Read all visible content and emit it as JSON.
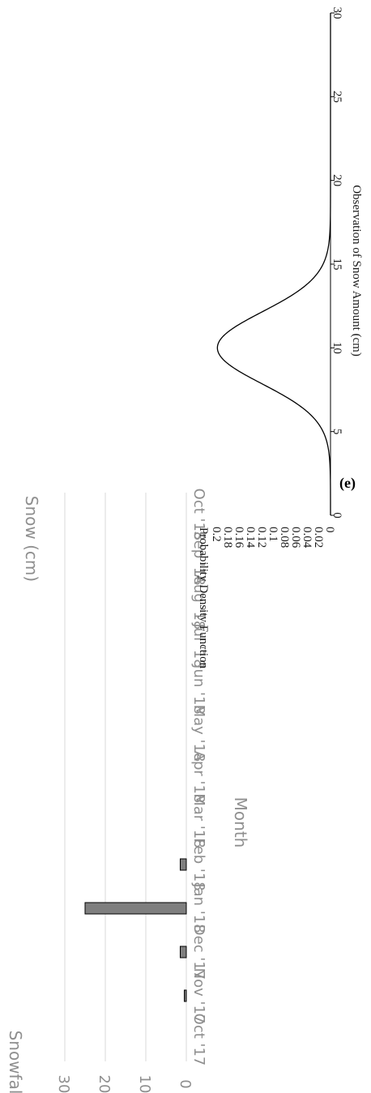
{
  "figure": {
    "caption": "(e)"
  },
  "chart_data": [
    {
      "type": "bar",
      "title": "Snow (cm)",
      "xlabel": "Month",
      "ylabel": "Snowfall (cm)",
      "categories": [
        "Oct '17",
        "Nov '17",
        "Dec '17",
        "Jan '18",
        "Feb '18",
        "Mar '18",
        "Apr '18",
        "May '18",
        "Jun '18",
        "Jul '18",
        "Aug '18",
        "Sep '18",
        "Oct '18"
      ],
      "values": [
        0,
        0.5,
        1.5,
        25,
        1.5,
        0,
        0,
        0,
        0,
        0,
        0,
        0,
        0
      ],
      "ylim": [
        0,
        30
      ],
      "yticks": [
        "0",
        "10",
        "20",
        "30"
      ],
      "grid": true,
      "colors": {
        "bar": "#7f7f7f",
        "bar_edge": "#000000",
        "grid": "#d9d9d9",
        "text": "#8f8f8f"
      }
    },
    {
      "type": "line",
      "xlabel": "Observation of Snow Amount (cm)",
      "ylabel": "Probability Density Function",
      "xlim": [
        0,
        30
      ],
      "ylim": [
        0,
        0.2
      ],
      "xticks": [
        "0",
        "5",
        "10",
        "15",
        "20",
        "25",
        "30"
      ],
      "yticks": [
        "0",
        "0.02",
        "0.04",
        "0.06",
        "0.08",
        "0.1",
        "0.12",
        "0.14",
        "0.16",
        "0.18",
        "0.2"
      ],
      "series": [
        {
          "x": [
            0,
            1,
            2,
            3,
            4,
            5,
            6,
            7,
            8,
            9,
            10,
            11,
            12,
            13,
            14,
            15,
            16,
            17,
            18,
            19,
            20,
            21,
            22,
            23,
            24,
            25,
            26,
            27,
            28,
            29,
            30
          ],
          "y": [
            0,
            0,
            0.0001,
            0.0009,
            0.0044,
            0.0136,
            0.0331,
            0.0699,
            0.121,
            0.172,
            0.1995,
            0.172,
            0.121,
            0.0699,
            0.0331,
            0.0136,
            0.0044,
            0.0009,
            0.0001,
            0,
            0,
            0,
            0,
            0,
            0,
            0,
            0,
            0,
            0,
            0,
            0
          ]
        }
      ],
      "colors": {
        "line": "#000000",
        "axis": "#000000",
        "text": "#1a1a1a"
      }
    }
  ]
}
